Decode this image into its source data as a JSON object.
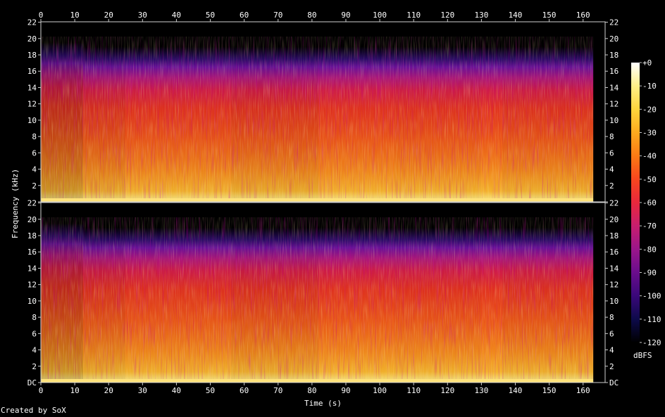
{
  "chart_data": {
    "type": "heatmap",
    "title": "",
    "xlabel": "Time (s)",
    "ylabel": "Frequency (kHz)",
    "x_ticks": [
      0,
      10,
      20,
      30,
      40,
      50,
      60,
      70,
      80,
      90,
      100,
      110,
      120,
      130,
      140,
      150,
      160
    ],
    "xlim": [
      0,
      166.5
    ],
    "duration_s": 163,
    "y_ticks": [
      {
        "value": 0,
        "label": "DC"
      },
      {
        "value": 2,
        "label": "2"
      },
      {
        "value": 4,
        "label": "4"
      },
      {
        "value": 6,
        "label": "6"
      },
      {
        "value": 8,
        "label": "8"
      },
      {
        "value": 10,
        "label": "10"
      },
      {
        "value": 12,
        "label": "12"
      },
      {
        "value": 14,
        "label": "14"
      },
      {
        "value": 16,
        "label": "16"
      },
      {
        "value": 18,
        "label": "18"
      },
      {
        "value": 20,
        "label": "20"
      },
      {
        "value": 22,
        "label": "22"
      }
    ],
    "ylim": [
      0,
      22.05
    ],
    "channels": 2,
    "colorbar": {
      "label": "dBFS",
      "ticks": [
        {
          "value": 0,
          "label": "+0"
        },
        {
          "value": -10,
          "label": "-10"
        },
        {
          "value": -20,
          "label": "-20"
        },
        {
          "value": -30,
          "label": "-30"
        },
        {
          "value": -40,
          "label": "-40"
        },
        {
          "value": -50,
          "label": "-50"
        },
        {
          "value": -60,
          "label": "-60"
        },
        {
          "value": -70,
          "label": "-70"
        },
        {
          "value": -80,
          "label": "-80"
        },
        {
          "value": -90,
          "label": "-90"
        },
        {
          "value": -100,
          "label": "-100"
        },
        {
          "value": -110,
          "label": "-110"
        },
        {
          "value": -120,
          "label": "-120"
        }
      ],
      "range": [
        -120,
        0
      ],
      "colors": [
        "#000000",
        "#0d0a4a",
        "#3a087a",
        "#6a0d8c",
        "#9a168a",
        "#c81e6e",
        "#e8283c",
        "#f7461e",
        "#fb7a14",
        "#fdaa1e",
        "#fdd53c",
        "#ffef88",
        "#ffffff"
      ]
    },
    "band_limit_khz": [
      {
        "t": [
          0,
          12.5
        ],
        "khz": 19.5
      },
      {
        "t": [
          12.5,
          163
        ],
        "khz": 19.0
      }
    ],
    "segments": [
      {
        "t": [
          0,
          12.5
        ],
        "level": 0.55
      },
      {
        "t": [
          12.5,
          25
        ],
        "level": 0.78
      },
      {
        "t": [
          25,
          56
        ],
        "level": 0.86
      },
      {
        "t": [
          56,
          82
        ],
        "level": 0.8
      },
      {
        "t": [
          82,
          104
        ],
        "level": 0.88
      },
      {
        "t": [
          104,
          130
        ],
        "level": 0.86
      },
      {
        "t": [
          130,
          136
        ],
        "level": 0.92
      },
      {
        "t": [
          136,
          163
        ],
        "level": 0.84
      }
    ]
  },
  "footer": {
    "credit": "Created by SoX"
  }
}
